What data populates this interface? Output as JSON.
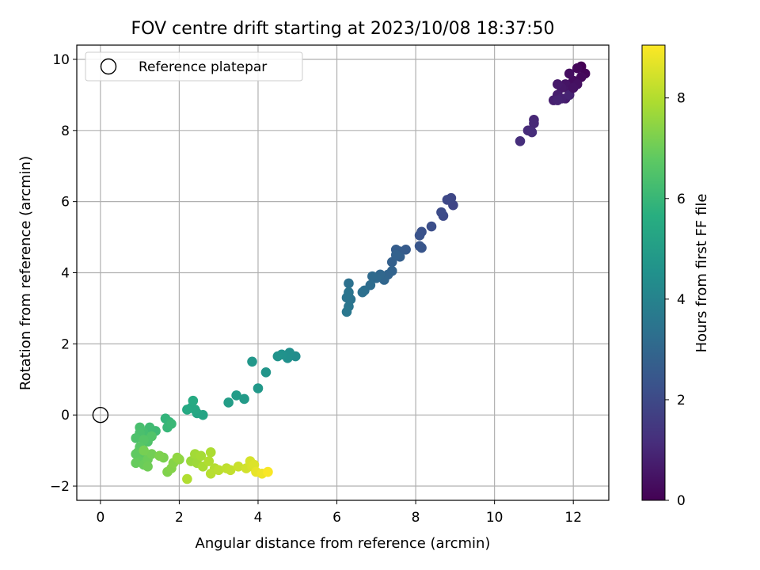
{
  "chart_data": {
    "type": "scatter",
    "title": "FOV centre drift starting at 2023/10/08 18:37:50",
    "xlabel": "Angular distance from reference (arcmin)",
    "ylabel": "Rotation from reference (arcmin)",
    "xlim": [
      -0.6,
      12.9
    ],
    "ylim": [
      -2.4,
      10.4
    ],
    "xticks": [
      0,
      2,
      4,
      6,
      8,
      10,
      12
    ],
    "yticks": [
      -2,
      0,
      2,
      4,
      6,
      8,
      10
    ],
    "grid": true,
    "legend": {
      "placement": "upper-left",
      "entries": [
        "Reference platepar"
      ]
    },
    "reference_point": {
      "x": 0,
      "y": 0
    },
    "colorbar": {
      "label": "Hours from first FF file",
      "range": [
        0,
        9.05
      ],
      "ticks": [
        0,
        2,
        4,
        6,
        8
      ],
      "colormap": "viridis"
    },
    "points": [
      {
        "x": 12.2,
        "y": 9.8,
        "c": 0.0
      },
      {
        "x": 12.3,
        "y": 9.6,
        "c": 0.1
      },
      {
        "x": 12.1,
        "y": 9.75,
        "c": 0.15
      },
      {
        "x": 12.2,
        "y": 9.5,
        "c": 0.2
      },
      {
        "x": 12.0,
        "y": 9.4,
        "c": 0.3
      },
      {
        "x": 11.9,
        "y": 9.6,
        "c": 0.35
      },
      {
        "x": 12.1,
        "y": 9.3,
        "c": 0.4
      },
      {
        "x": 11.8,
        "y": 9.3,
        "c": 0.5
      },
      {
        "x": 11.9,
        "y": 9.1,
        "c": 0.55
      },
      {
        "x": 11.7,
        "y": 9.2,
        "c": 0.6
      },
      {
        "x": 11.6,
        "y": 9.3,
        "c": 0.65
      },
      {
        "x": 11.8,
        "y": 8.9,
        "c": 0.7
      },
      {
        "x": 11.6,
        "y": 9.0,
        "c": 0.75
      },
      {
        "x": 11.5,
        "y": 8.85,
        "c": 0.8
      },
      {
        "x": 11.7,
        "y": 8.9,
        "c": 0.85
      },
      {
        "x": 11.6,
        "y": 8.85,
        "c": 0.9
      },
      {
        "x": 11.9,
        "y": 9.0,
        "c": 0.9
      },
      {
        "x": 12.0,
        "y": 9.2,
        "c": 0.45
      },
      {
        "x": 11.0,
        "y": 8.3,
        "c": 1.0
      },
      {
        "x": 11.0,
        "y": 8.2,
        "c": 1.05
      },
      {
        "x": 10.85,
        "y": 8.0,
        "c": 1.1
      },
      {
        "x": 10.95,
        "y": 7.95,
        "c": 1.15
      },
      {
        "x": 10.65,
        "y": 7.7,
        "c": 1.2
      },
      {
        "x": 8.95,
        "y": 5.9,
        "c": 1.9
      },
      {
        "x": 8.9,
        "y": 6.1,
        "c": 1.95
      },
      {
        "x": 8.8,
        "y": 6.05,
        "c": 2.0
      },
      {
        "x": 8.7,
        "y": 5.6,
        "c": 2.05
      },
      {
        "x": 8.65,
        "y": 5.7,
        "c": 2.1
      },
      {
        "x": 8.4,
        "y": 5.3,
        "c": 2.2
      },
      {
        "x": 8.15,
        "y": 5.15,
        "c": 2.3
      },
      {
        "x": 8.1,
        "y": 5.05,
        "c": 2.35
      },
      {
        "x": 8.15,
        "y": 4.7,
        "c": 2.4
      },
      {
        "x": 8.1,
        "y": 4.75,
        "c": 2.45
      },
      {
        "x": 7.75,
        "y": 4.65,
        "c": 2.6
      },
      {
        "x": 7.6,
        "y": 4.6,
        "c": 2.65
      },
      {
        "x": 7.5,
        "y": 4.65,
        "c": 2.7
      },
      {
        "x": 7.6,
        "y": 4.45,
        "c": 2.75
      },
      {
        "x": 7.4,
        "y": 4.3,
        "c": 2.8
      },
      {
        "x": 7.5,
        "y": 4.5,
        "c": 2.85
      },
      {
        "x": 7.4,
        "y": 4.05,
        "c": 2.9
      },
      {
        "x": 7.3,
        "y": 3.95,
        "c": 2.95
      },
      {
        "x": 7.2,
        "y": 3.8,
        "c": 3.0
      },
      {
        "x": 7.1,
        "y": 3.95,
        "c": 3.05
      },
      {
        "x": 7.0,
        "y": 3.85,
        "c": 3.1
      },
      {
        "x": 6.9,
        "y": 3.9,
        "c": 3.15
      },
      {
        "x": 6.85,
        "y": 3.65,
        "c": 3.2
      },
      {
        "x": 6.7,
        "y": 3.5,
        "c": 3.3
      },
      {
        "x": 6.65,
        "y": 3.45,
        "c": 3.35
      },
      {
        "x": 6.3,
        "y": 3.7,
        "c": 3.4
      },
      {
        "x": 6.35,
        "y": 3.25,
        "c": 3.45
      },
      {
        "x": 6.25,
        "y": 3.3,
        "c": 3.5
      },
      {
        "x": 6.3,
        "y": 3.05,
        "c": 3.55
      },
      {
        "x": 6.25,
        "y": 2.9,
        "c": 3.6
      },
      {
        "x": 6.3,
        "y": 3.45,
        "c": 3.5
      },
      {
        "x": 4.95,
        "y": 1.65,
        "c": 4.4
      },
      {
        "x": 4.8,
        "y": 1.75,
        "c": 4.45
      },
      {
        "x": 4.75,
        "y": 1.6,
        "c": 4.5
      },
      {
        "x": 4.6,
        "y": 1.7,
        "c": 4.55
      },
      {
        "x": 4.5,
        "y": 1.65,
        "c": 4.6
      },
      {
        "x": 4.2,
        "y": 1.2,
        "c": 4.7
      },
      {
        "x": 3.85,
        "y": 1.5,
        "c": 4.75
      },
      {
        "x": 4.0,
        "y": 0.75,
        "c": 4.8
      },
      {
        "x": 3.65,
        "y": 0.45,
        "c": 4.9
      },
      {
        "x": 3.45,
        "y": 0.55,
        "c": 4.95
      },
      {
        "x": 3.25,
        "y": 0.35,
        "c": 5.0
      },
      {
        "x": 2.6,
        "y": 0.0,
        "c": 5.3
      },
      {
        "x": 2.45,
        "y": 0.05,
        "c": 5.35
      },
      {
        "x": 2.4,
        "y": 0.15,
        "c": 5.4
      },
      {
        "x": 2.3,
        "y": 0.2,
        "c": 5.45
      },
      {
        "x": 2.2,
        "y": 0.15,
        "c": 5.5
      },
      {
        "x": 2.35,
        "y": 0.4,
        "c": 5.55
      },
      {
        "x": 1.65,
        "y": -0.1,
        "c": 5.9
      },
      {
        "x": 1.75,
        "y": -0.2,
        "c": 5.95
      },
      {
        "x": 1.7,
        "y": -0.35,
        "c": 6.0
      },
      {
        "x": 1.8,
        "y": -0.25,
        "c": 6.05
      },
      {
        "x": 1.4,
        "y": -0.45,
        "c": 6.15
      },
      {
        "x": 1.25,
        "y": -0.35,
        "c": 6.2
      },
      {
        "x": 1.1,
        "y": -0.5,
        "c": 6.3
      },
      {
        "x": 1.0,
        "y": -0.35,
        "c": 6.35
      },
      {
        "x": 1.0,
        "y": -0.5,
        "c": 6.4
      },
      {
        "x": 0.9,
        "y": -0.65,
        "c": 6.45
      },
      {
        "x": 1.2,
        "y": -0.75,
        "c": 6.5
      },
      {
        "x": 1.3,
        "y": -0.6,
        "c": 6.55
      },
      {
        "x": 1.1,
        "y": -0.7,
        "c": 6.6
      },
      {
        "x": 1.0,
        "y": -0.9,
        "c": 6.65
      },
      {
        "x": 0.95,
        "y": -1.05,
        "c": 6.7
      },
      {
        "x": 1.05,
        "y": -1.2,
        "c": 6.75
      },
      {
        "x": 0.9,
        "y": -1.1,
        "c": 6.8
      },
      {
        "x": 1.0,
        "y": -1.3,
        "c": 6.85
      },
      {
        "x": 0.9,
        "y": -1.35,
        "c": 6.9
      },
      {
        "x": 1.1,
        "y": -1.4,
        "c": 6.95
      },
      {
        "x": 1.2,
        "y": -1.25,
        "c": 7.0
      },
      {
        "x": 1.2,
        "y": -1.45,
        "c": 7.05
      },
      {
        "x": 1.3,
        "y": -1.1,
        "c": 7.1
      },
      {
        "x": 1.1,
        "y": -1.0,
        "c": 7.15
      },
      {
        "x": 1.6,
        "y": -1.2,
        "c": 7.2
      },
      {
        "x": 1.5,
        "y": -1.15,
        "c": 7.25
      },
      {
        "x": 1.7,
        "y": -1.6,
        "c": 7.3
      },
      {
        "x": 1.8,
        "y": -1.5,
        "c": 7.35
      },
      {
        "x": 1.85,
        "y": -1.35,
        "c": 7.4
      },
      {
        "x": 2.0,
        "y": -1.25,
        "c": 7.5
      },
      {
        "x": 1.95,
        "y": -1.2,
        "c": 7.55
      },
      {
        "x": 2.3,
        "y": -1.3,
        "c": 7.7
      },
      {
        "x": 2.45,
        "y": -1.35,
        "c": 7.75
      },
      {
        "x": 2.4,
        "y": -1.1,
        "c": 7.8
      },
      {
        "x": 2.55,
        "y": -1.15,
        "c": 7.85
      },
      {
        "x": 2.6,
        "y": -1.45,
        "c": 7.9
      },
      {
        "x": 2.8,
        "y": -1.05,
        "c": 7.95
      },
      {
        "x": 2.75,
        "y": -1.3,
        "c": 8.0
      },
      {
        "x": 2.9,
        "y": -1.5,
        "c": 8.05
      },
      {
        "x": 2.8,
        "y": -1.65,
        "c": 8.1
      },
      {
        "x": 3.0,
        "y": -1.55,
        "c": 8.15
      },
      {
        "x": 3.2,
        "y": -1.5,
        "c": 8.2
      },
      {
        "x": 3.3,
        "y": -1.55,
        "c": 8.25
      },
      {
        "x": 2.2,
        "y": -1.8,
        "c": 8.0
      },
      {
        "x": 3.5,
        "y": -1.45,
        "c": 8.35
      },
      {
        "x": 3.7,
        "y": -1.5,
        "c": 8.45
      },
      {
        "x": 3.8,
        "y": -1.3,
        "c": 8.5
      },
      {
        "x": 3.85,
        "y": -1.45,
        "c": 8.55
      },
      {
        "x": 3.9,
        "y": -1.4,
        "c": 8.6
      },
      {
        "x": 3.95,
        "y": -1.6,
        "c": 8.75
      },
      {
        "x": 4.1,
        "y": -1.65,
        "c": 8.85
      },
      {
        "x": 4.25,
        "y": -1.6,
        "c": 9.0
      }
    ]
  }
}
